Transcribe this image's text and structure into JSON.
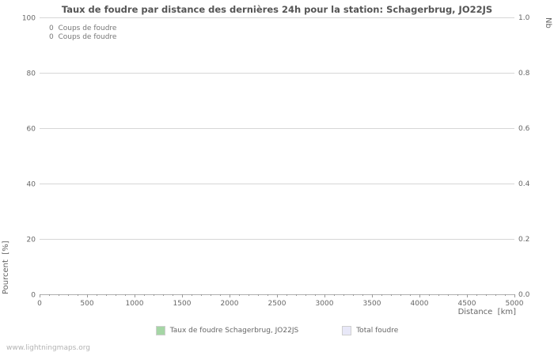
{
  "title": "Taux de foudre par distance des dernières 24h pour la station: Schagerbrug, JO22JS",
  "annotations": [
    "0  Coups de foudre",
    "0  Coups de foudre"
  ],
  "watermark": "www.lightningmaps.org",
  "legend": [
    {
      "label": "Taux de foudre Schagerbrug, JO22JS",
      "color": "#a5d6a5"
    },
    {
      "label": "Total foudre",
      "color": "#e8e8f8"
    }
  ],
  "colors": {
    "gridline": "#d6d6d6",
    "axis": "#b0b0b0",
    "tick": "#999999",
    "title_text": "#555555",
    "axis_text": "#666666"
  },
  "chart_data": {
    "type": "line",
    "title": "Taux de foudre par distance des dernières 24h pour la station: Schagerbrug, JO22JS",
    "xlabel": "Distance  [km]",
    "ylabel_left": "Pourcent  [%]",
    "ylabel_right": "Nb",
    "xlim": [
      0,
      5000
    ],
    "ylim_left": [
      0,
      100
    ],
    "ylim_right": [
      0.0,
      1.0
    ],
    "x_ticks": [
      0,
      500,
      1000,
      1500,
      2000,
      2500,
      3000,
      3500,
      4000,
      4500,
      5000
    ],
    "x_minor_tick_step": 100,
    "y_left_ticks": [
      0,
      20,
      40,
      60,
      80,
      100
    ],
    "y_right_ticks": [
      "0.0",
      "0.2",
      "0.4",
      "0.6",
      "0.8",
      "1.0"
    ],
    "grid": true,
    "legend_position": "bottom",
    "series": [
      {
        "name": "Taux de foudre Schagerbrug, JO22JS",
        "values": []
      },
      {
        "name": "Total foudre",
        "values": []
      }
    ]
  }
}
